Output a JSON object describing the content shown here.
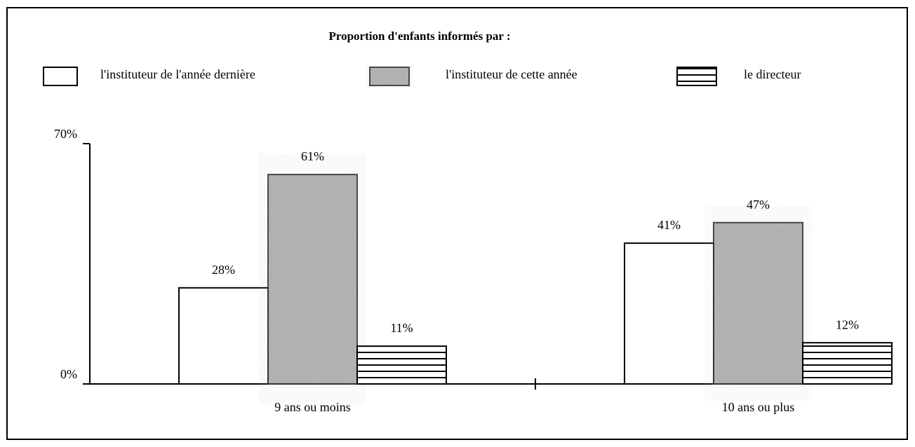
{
  "chart_data": {
    "type": "bar",
    "title": "Proportion d'enfants informés par  :",
    "categories": [
      "9 ans ou moins",
      "10 ans ou plus"
    ],
    "series": [
      {
        "name": "l'instituteur de l'année dernière",
        "color": "#ffffff",
        "values": [
          28,
          41
        ],
        "value_labels": [
          "28%",
          "41%"
        ]
      },
      {
        "name": "l'instituteur de cette année",
        "color": "#a9a9a9",
        "values": [
          61,
          47
        ],
        "value_labels": [
          "61%",
          "47%"
        ]
      },
      {
        "name": "le directeur",
        "color": "#ffffff",
        "hatch": true,
        "values": [
          11,
          12
        ],
        "value_labels": [
          "11%",
          "12%"
        ]
      }
    ],
    "ylim": [
      0,
      70
    ],
    "yticks": [
      {
        "value": 0,
        "label": "0%"
      },
      {
        "value": 70,
        "label": "70%"
      }
    ],
    "grid": false
  }
}
